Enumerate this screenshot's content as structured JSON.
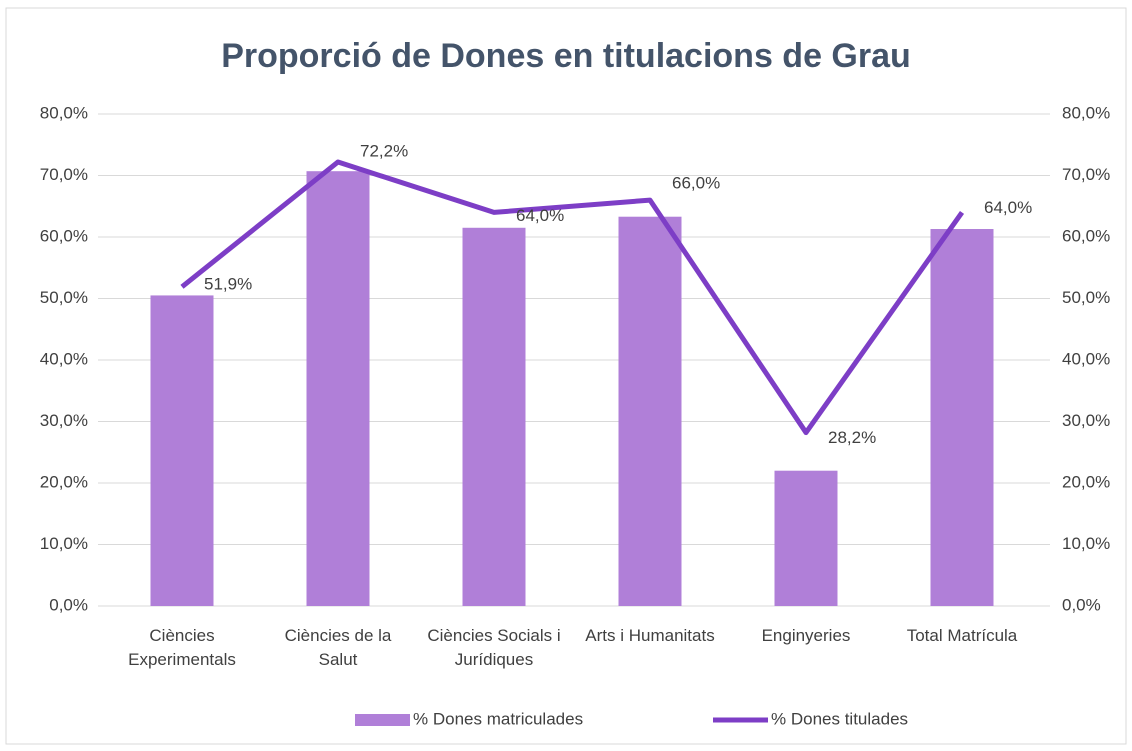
{
  "chart_data": {
    "type": "bar",
    "title": "Proporció de Dones en titulacions de Grau",
    "categories": [
      "Ciències Experimentals",
      "Ciències de la Salut",
      "Ciències Socials i Jurídiques",
      "Arts i Humanitats",
      "Enginyeries",
      "Total Matrícula"
    ],
    "series": [
      {
        "name": "% Dones matriculades",
        "type": "bar",
        "color": "#b07fd8",
        "values": [
          50.5,
          70.7,
          61.5,
          63.3,
          22.0,
          61.3
        ]
      },
      {
        "name": "% Dones titulades",
        "type": "line",
        "axis": "y2",
        "color": "#7d3ec6",
        "values": [
          51.9,
          72.2,
          64.0,
          66.0,
          28.2,
          64.0
        ],
        "value_labels": [
          "51,9%",
          "72,2%",
          "64,0%",
          "66,0%",
          "28,2%",
          "64,0%"
        ]
      }
    ],
    "ylim": [
      0,
      80
    ],
    "yticks": [
      {
        "value": 0,
        "label": "0,0%"
      },
      {
        "value": 10,
        "label": "10,0%"
      },
      {
        "value": 20,
        "label": "20,0%"
      },
      {
        "value": 30,
        "label": "30,0%"
      },
      {
        "value": 40,
        "label": "40,0%"
      },
      {
        "value": 50,
        "label": "50,0%"
      },
      {
        "value": 60,
        "label": "60,0%"
      },
      {
        "value": 70,
        "label": "70,0%"
      },
      {
        "value": 80,
        "label": "80,0%"
      }
    ],
    "y2lim": [
      0,
      80
    ],
    "y2ticks": [
      {
        "value": 0,
        "label": "0,0%"
      },
      {
        "value": 10,
        "label": "10,0%"
      },
      {
        "value": 20,
        "label": "20,0%"
      },
      {
        "value": 30,
        "label": "30,0%"
      },
      {
        "value": 40,
        "label": "40,0%"
      },
      {
        "value": 50,
        "label": "50,0%"
      },
      {
        "value": 60,
        "label": "60,0%"
      },
      {
        "value": 70,
        "label": "70,0%"
      },
      {
        "value": 80,
        "label": "80,0%"
      }
    ],
    "grid": true,
    "legend": "bottom"
  }
}
